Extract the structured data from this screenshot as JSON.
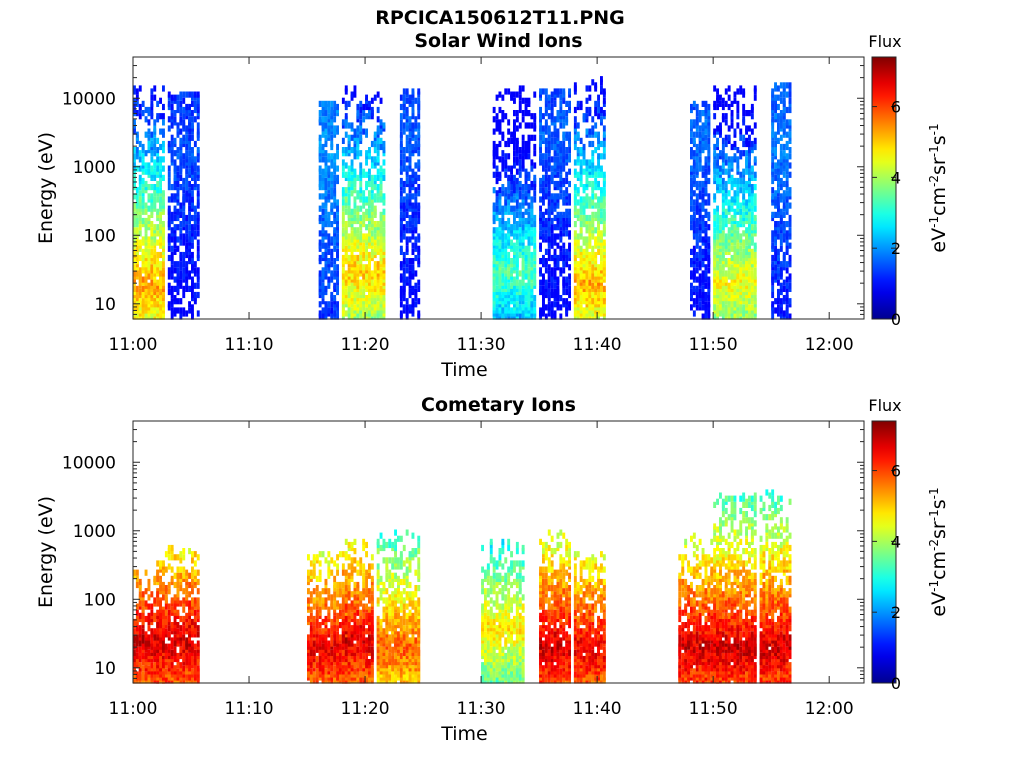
{
  "figure": {
    "title": "RPCICA150612T11.PNG"
  },
  "colormap": {
    "name": "jet",
    "stops": [
      "#00008f",
      "#0000ff",
      "#0080ff",
      "#00ffff",
      "#80ff80",
      "#ffff00",
      "#ff8000",
      "#ff0000",
      "#800000"
    ]
  },
  "chart_data": [
    {
      "type": "heatmap",
      "title": "Solar Wind Ions",
      "xlabel": "Time",
      "ylabel": "Energy (eV)",
      "yscale": "log",
      "xlim": [
        "11:00",
        "12:03"
      ],
      "ylim": [
        6,
        40000
      ],
      "xticks": [
        "11:00",
        "11:10",
        "11:20",
        "11:30",
        "11:40",
        "11:50",
        "12:00"
      ],
      "yticks": [
        10,
        100,
        1000,
        10000
      ],
      "ytick_labels": [
        "10",
        "100",
        "1000",
        "10000"
      ],
      "colorbar": {
        "title": "Flux",
        "label": "eV-1cm-2sr-1s-1",
        "range": [
          0,
          7.4
        ],
        "ticks": [
          0,
          2,
          4,
          6
        ]
      },
      "bursts": [
        {
          "t0": "11:00",
          "t1": "11:02",
          "energy_max": 15000,
          "peak_energy": 20,
          "peak_flux": 5.3
        },
        {
          "t0": "11:03",
          "t1": "11:05",
          "energy_max": 12000,
          "peak_energy": 1500,
          "peak_flux": 1.5
        },
        {
          "t0": "11:16",
          "t1": "11:17",
          "energy_max": 9000,
          "peak_energy": 2000,
          "peak_flux": 2.0
        },
        {
          "t0": "11:18",
          "t1": "11:21",
          "energy_max": 15000,
          "peak_energy": 30,
          "peak_flux": 5.0
        },
        {
          "t0": "11:23",
          "t1": "11:24",
          "energy_max": 13000,
          "peak_energy": 3000,
          "peak_flux": 1.6
        },
        {
          "t0": "11:31",
          "t1": "11:34",
          "energy_max": 15000,
          "peak_energy": 30,
          "peak_flux": 3.4
        },
        {
          "t0": "11:35",
          "t1": "11:37",
          "energy_max": 13000,
          "peak_energy": 3000,
          "peak_flux": 1.6
        },
        {
          "t0": "11:38",
          "t1": "11:40",
          "energy_max": 20000,
          "peak_energy": 20,
          "peak_flux": 5.2
        },
        {
          "t0": "11:48",
          "t1": "11:49",
          "energy_max": 9000,
          "peak_energy": 3000,
          "peak_flux": 1.7
        },
        {
          "t0": "11:50",
          "t1": "11:53",
          "energy_max": 15000,
          "peak_energy": 20,
          "peak_flux": 4.6
        },
        {
          "t0": "11:55",
          "t1": "11:56",
          "energy_max": 16000,
          "peak_energy": 2000,
          "peak_flux": 1.8
        }
      ]
    },
    {
      "type": "heatmap",
      "title": "Cometary Ions",
      "xlabel": "Time",
      "ylabel": "Energy (eV)",
      "yscale": "log",
      "xlim": [
        "11:00",
        "12:03"
      ],
      "ylim": [
        6,
        40000
      ],
      "xticks": [
        "11:00",
        "11:10",
        "11:20",
        "11:30",
        "11:40",
        "11:50",
        "12:00"
      ],
      "yticks": [
        10,
        100,
        1000,
        10000
      ],
      "ytick_labels": [
        "10",
        "100",
        "1000",
        "10000"
      ],
      "colorbar": {
        "title": "Flux",
        "label": "eV-1cm-2sr-1s-1",
        "range": [
          0,
          7.4
        ],
        "ticks": [
          0,
          2,
          4,
          6
        ]
      },
      "bursts": [
        {
          "t0": "11:00",
          "t1": "11:02",
          "energy_max": 300,
          "peak_energy": 25,
          "peak_flux": 6.8
        },
        {
          "t0": "11:02",
          "t1": "11:05",
          "energy_max": 600,
          "peak_energy": 25,
          "peak_flux": 6.8
        },
        {
          "t0": "11:15",
          "t1": "11:18",
          "energy_max": 500,
          "peak_energy": 20,
          "peak_flux": 6.6
        },
        {
          "t0": "11:18",
          "t1": "11:20",
          "energy_max": 700,
          "peak_energy": 25,
          "peak_flux": 6.7
        },
        {
          "t0": "11:21",
          "t1": "11:24",
          "energy_max": 1000,
          "peak_energy": 20,
          "peak_flux": 5.8
        },
        {
          "t0": "11:30",
          "t1": "11:33",
          "energy_max": 700,
          "peak_energy": 40,
          "peak_flux": 4.8
        },
        {
          "t0": "11:35",
          "t1": "11:37",
          "energy_max": 1000,
          "peak_energy": 20,
          "peak_flux": 6.8
        },
        {
          "t0": "11:38",
          "t1": "11:40",
          "energy_max": 500,
          "peak_energy": 20,
          "peak_flux": 6.6
        },
        {
          "t0": "11:47",
          "t1": "11:50",
          "energy_max": 900,
          "peak_energy": 20,
          "peak_flux": 6.8
        },
        {
          "t0": "11:50",
          "t1": "11:53",
          "energy_max": 3500,
          "peak_energy": 20,
          "peak_flux": 6.8
        },
        {
          "t0": "11:54",
          "t1": "11:56",
          "energy_max": 4000,
          "peak_energy": 20,
          "peak_flux": 6.8
        }
      ]
    }
  ]
}
